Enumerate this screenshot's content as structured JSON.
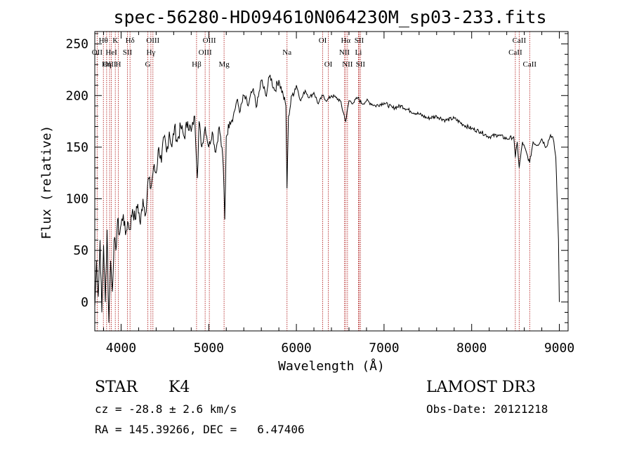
{
  "chart_data": {
    "type": "line",
    "title": "spec-56280-HD094610N064230M_sp03-233.fits",
    "xlabel": "Wavelength (Å)",
    "ylabel": "Flux (relative)",
    "xlim": [
      3700,
      9100
    ],
    "ylim": [
      -28,
      262
    ],
    "xticks": [
      4000,
      5000,
      6000,
      7000,
      8000,
      9000
    ],
    "xtick_labels": [
      "4000",
      "5000",
      "6000",
      "7000",
      "8000",
      "9000"
    ],
    "yticks": [
      0,
      50,
      100,
      150,
      200,
      250
    ],
    "ytick_labels": [
      "0",
      "50",
      "100",
      "150",
      "200",
      "250"
    ],
    "grid": false,
    "series": [
      {
        "x": [
          3700,
          3720,
          3740,
          3760,
          3780,
          3800,
          3820,
          3840,
          3860,
          3880,
          3900,
          3920,
          3940,
          3960,
          3980,
          4000,
          4025,
          4050,
          4075,
          4100,
          4130,
          4160,
          4190,
          4220,
          4250,
          4280,
          4310,
          4340,
          4370,
          4400,
          4430,
          4460,
          4490,
          4520,
          4550,
          4580,
          4610,
          4640,
          4680,
          4720,
          4760,
          4800,
          4840,
          4870,
          4890,
          4920,
          4960,
          5000,
          5040,
          5080,
          5120,
          5160,
          5170,
          5183,
          5200,
          5240,
          5280,
          5320,
          5360,
          5400,
          5450,
          5500,
          5550,
          5600,
          5650,
          5700,
          5750,
          5800,
          5850,
          5880,
          5893,
          5910,
          5950,
          6000,
          6050,
          6100,
          6150,
          6200,
          6250,
          6300,
          6350,
          6400,
          6450,
          6500,
          6563,
          6600,
          6650,
          6700,
          6750,
          6800,
          6900,
          7000,
          7100,
          7200,
          7300,
          7400,
          7500,
          7600,
          7700,
          7800,
          7900,
          8000,
          8100,
          8200,
          8300,
          8400,
          8480,
          8498,
          8520,
          8542,
          8580,
          8662,
          8700,
          8750,
          8800,
          8850,
          8900,
          8930,
          8960,
          8990,
          9000
        ],
        "y": [
          -5,
          40,
          5,
          60,
          -10,
          55,
          0,
          70,
          -20,
          40,
          10,
          60,
          50,
          80,
          65,
          75,
          85,
          65,
          78,
          70,
          90,
          80,
          95,
          75,
          100,
          85,
          120,
          110,
          130,
          125,
          150,
          135,
          160,
          145,
          165,
          150,
          170,
          155,
          170,
          160,
          175,
          165,
          180,
          120,
          175,
          150,
          170,
          150,
          165,
          145,
          170,
          140,
          120,
          80,
          160,
          175,
          180,
          195,
          185,
          200,
          190,
          205,
          190,
          215,
          200,
          220,
          205,
          215,
          200,
          190,
          110,
          180,
          200,
          210,
          195,
          205,
          198,
          203,
          192,
          200,
          195,
          200,
          198,
          195,
          175,
          195,
          193,
          198,
          192,
          195,
          190,
          193,
          188,
          190,
          185,
          182,
          178,
          180,
          176,
          178,
          172,
          168,
          165,
          160,
          162,
          158,
          160,
          140,
          155,
          130,
          155,
          135,
          155,
          152,
          158,
          150,
          162,
          158,
          140,
          60,
          0
        ]
      }
    ],
    "lines": [
      {
        "name": "Hθ",
        "wavelength": 3798,
        "row": 0
      },
      {
        "name": "OII",
        "wavelength": 3727,
        "row": 1
      },
      {
        "name": "OIII",
        "wavelength": 3869,
        "row": 2
      },
      {
        "name": "Hη",
        "wavelength": 3835,
        "row": 2
      },
      {
        "name": "HeI",
        "wavelength": 3889,
        "row": 1
      },
      {
        "name": "K",
        "wavelength": 3934,
        "row": 0
      },
      {
        "name": "H",
        "wavelength": 3968,
        "row": 2
      },
      {
        "name": "SII",
        "wavelength": 4072,
        "row": 1
      },
      {
        "name": "Hδ",
        "wavelength": 4102,
        "row": 0
      },
      {
        "name": "OIII",
        "wavelength": 4363,
        "row": 0
      },
      {
        "name": "Hγ",
        "wavelength": 4340,
        "row": 1
      },
      {
        "name": "G",
        "wavelength": 4305,
        "row": 2
      },
      {
        "name": "Hβ",
        "wavelength": 4861,
        "row": 2
      },
      {
        "name": "OIII",
        "wavelength": 5007,
        "row": 0
      },
      {
        "name": "OIII",
        "wavelength": 4959,
        "row": 1
      },
      {
        "name": "Mg",
        "wavelength": 5175,
        "row": 2
      },
      {
        "name": "Na",
        "wavelength": 5893,
        "row": 1
      },
      {
        "name": "OI",
        "wavelength": 6300,
        "row": 0
      },
      {
        "name": "OI",
        "wavelength": 6364,
        "row": 2
      },
      {
        "name": "Hα",
        "wavelength": 6563,
        "row": 0
      },
      {
        "name": "NII",
        "wavelength": 6548,
        "row": 1
      },
      {
        "name": "NII",
        "wavelength": 6583,
        "row": 2
      },
      {
        "name": "SII",
        "wavelength": 6716,
        "row": 0
      },
      {
        "name": "SII",
        "wavelength": 6731,
        "row": 2
      },
      {
        "name": "Li",
        "wavelength": 6708,
        "row": 1
      },
      {
        "name": "CaII",
        "wavelength": 8542,
        "row": 0
      },
      {
        "name": "CaII",
        "wavelength": 8498,
        "row": 1
      },
      {
        "name": "CaII",
        "wavelength": 8662,
        "row": 2
      }
    ]
  },
  "info": {
    "class_label": "STAR",
    "subclass_label": "K4",
    "survey_label": "LAMOST DR3",
    "redshift_text": "cz = -28.8 ± 2.6 km/s",
    "obs_date_text": "Obs-Date: 20121218",
    "coords_text": "RA = 145.39266, DEC =   6.47406"
  },
  "colors": {
    "spectrum": "#000000",
    "line_markers": "#b22222",
    "axes": "#000000"
  }
}
